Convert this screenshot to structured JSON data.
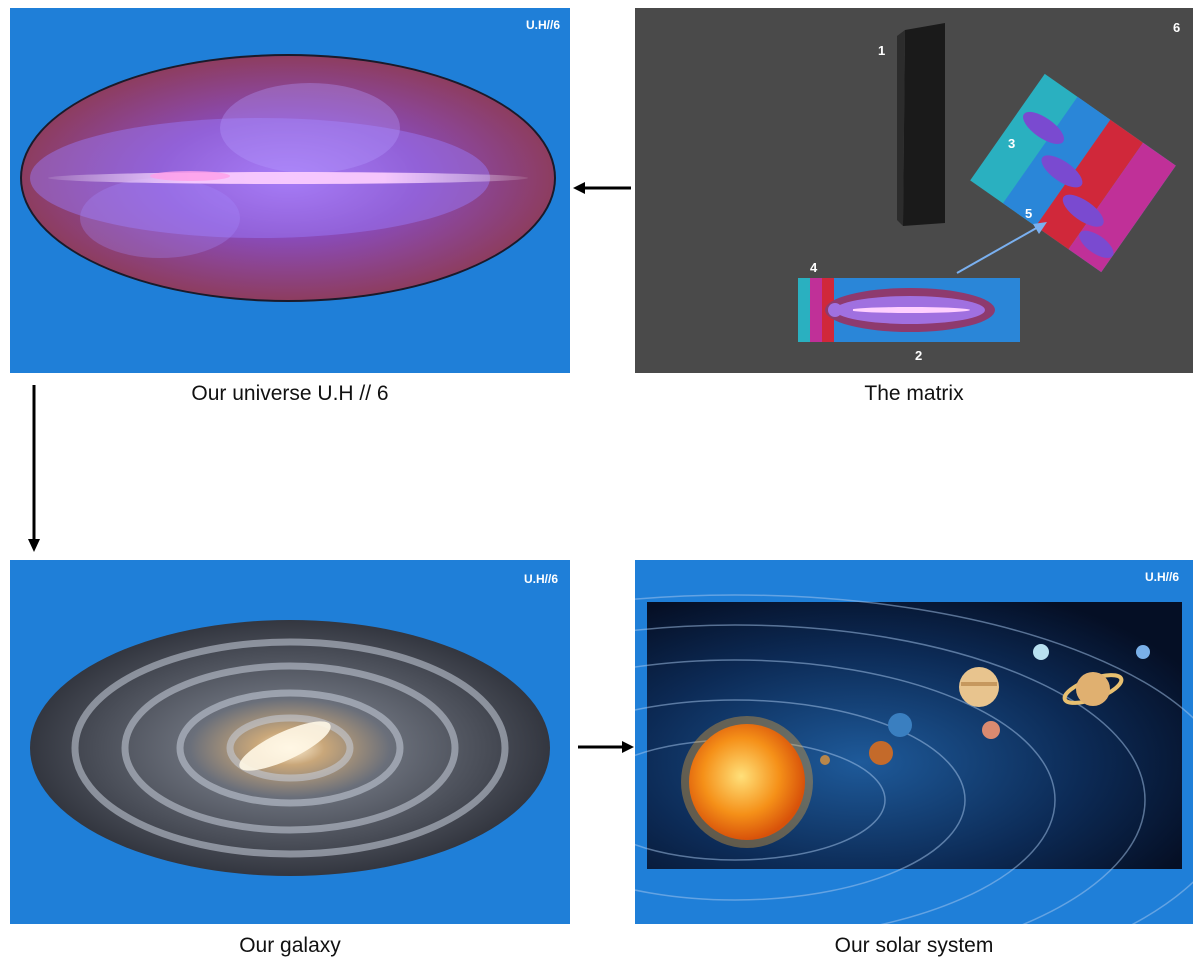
{
  "universe": {
    "tag": "U.H//6",
    "caption": "Our universe U.H // 6"
  },
  "matrix": {
    "caption": "The matrix",
    "labels": {
      "n1": "1",
      "n2": "2",
      "n3": "3",
      "n4": "4",
      "n5": "5",
      "n6": "6"
    }
  },
  "galaxy": {
    "tag": "U.H//6",
    "caption": "Our galaxy"
  },
  "solar": {
    "tag": "U.H//6",
    "caption": "Our solar system"
  },
  "colors": {
    "panel_blue": "#1f7fd8",
    "matrix_gray": "#4a4a4a"
  }
}
